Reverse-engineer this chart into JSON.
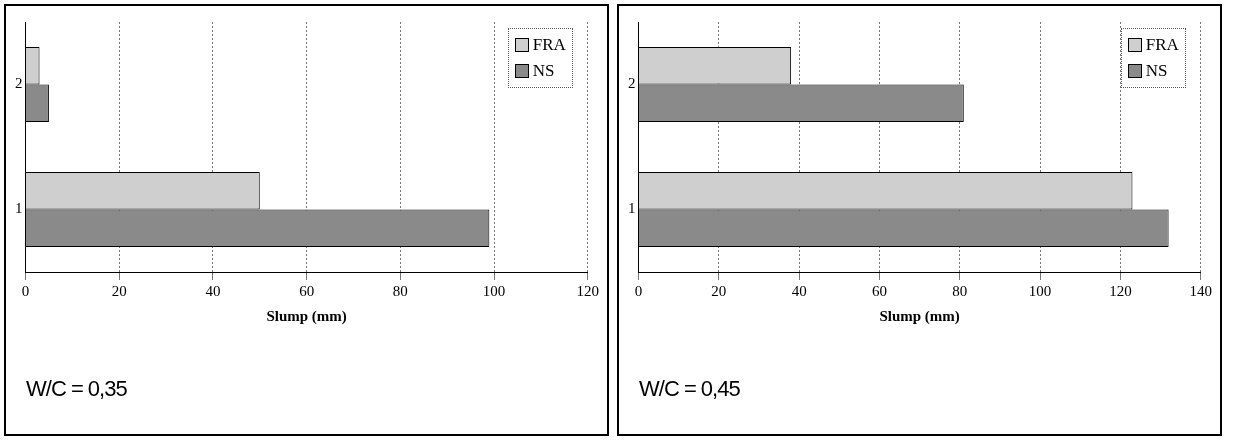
{
  "chart_data": [
    {
      "type": "bar",
      "orientation": "horizontal",
      "categories": [
        "2",
        "1"
      ],
      "series": [
        {
          "name": "FRA",
          "color": "#cfcfcf",
          "values": [
            3,
            50
          ]
        },
        {
          "name": "NS",
          "color": "#8a8a8a",
          "values": [
            5,
            99
          ]
        }
      ],
      "xlabel": "Slump (mm)",
      "xlim": [
        0,
        120
      ],
      "xticks": [
        0,
        20,
        40,
        60,
        80,
        100,
        120
      ],
      "grid": "x",
      "legend": "top right",
      "annotations": [
        "W/C = 0,35"
      ]
    },
    {
      "type": "bar",
      "orientation": "horizontal",
      "categories": [
        "2",
        "1"
      ],
      "series": [
        {
          "name": "FRA",
          "color": "#cfcfcf",
          "values": [
            38,
            123
          ]
        },
        {
          "name": "NS",
          "color": "#8a8a8a",
          "values": [
            81,
            132
          ]
        }
      ],
      "xlabel": "Slump (mm)",
      "xlim": [
        0,
        140
      ],
      "xticks": [
        0,
        20,
        40,
        60,
        80,
        100,
        120,
        140
      ],
      "grid": "x",
      "legend": "top right",
      "annotations": [
        "W/C = 0,45"
      ]
    }
  ]
}
